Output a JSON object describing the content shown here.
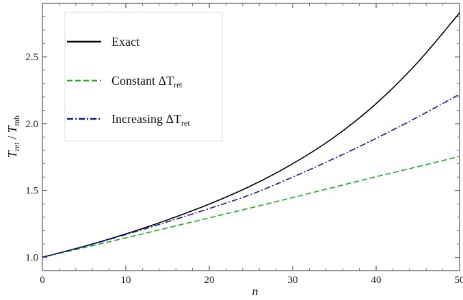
{
  "chart_data": {
    "type": "line",
    "xlabel": "n",
    "ylabel": {
      "main1": "T",
      "sub1": "ret",
      "sep": " / ",
      "main2": "T",
      "sub2": "mb"
    },
    "xlim": [
      0,
      50
    ],
    "ylim": [
      0.9,
      2.9
    ],
    "xticks": [
      0,
      10,
      20,
      30,
      40,
      50
    ],
    "yticks": [
      1.0,
      1.5,
      2.0,
      2.5
    ],
    "xtick_labels": [
      "0",
      "10",
      "20",
      "30",
      "40",
      "50"
    ],
    "ytick_labels": [
      "1.0",
      "1.5",
      "2.0",
      "2.5"
    ],
    "grid": false,
    "legend_position": "top-left",
    "x": [
      0,
      5,
      10,
      15,
      20,
      25,
      30,
      35,
      40,
      45,
      50
    ],
    "series": [
      {
        "legend": {
          "main": "Exact",
          "sub": ""
        },
        "color": "#000000",
        "dash": "solid",
        "values": [
          1.0,
          1.082,
          1.175,
          1.28,
          1.398,
          1.535,
          1.7,
          1.9,
          2.15,
          2.46,
          2.83
        ]
      },
      {
        "legend": {
          "main": "Constant ΔT",
          "sub": "ret"
        },
        "color": "#22aa22",
        "dash": "dashed",
        "values": [
          1.0,
          1.072,
          1.145,
          1.22,
          1.295,
          1.37,
          1.447,
          1.525,
          1.603,
          1.678,
          1.755
        ]
      },
      {
        "legend": {
          "main": "Increasing ΔT",
          "sub": "ret"
        },
        "color": "#0a1a9a",
        "dash": "dashdot",
        "values": [
          1.0,
          1.08,
          1.17,
          1.265,
          1.365,
          1.47,
          1.6,
          1.74,
          1.89,
          2.05,
          2.22
        ]
      }
    ]
  }
}
